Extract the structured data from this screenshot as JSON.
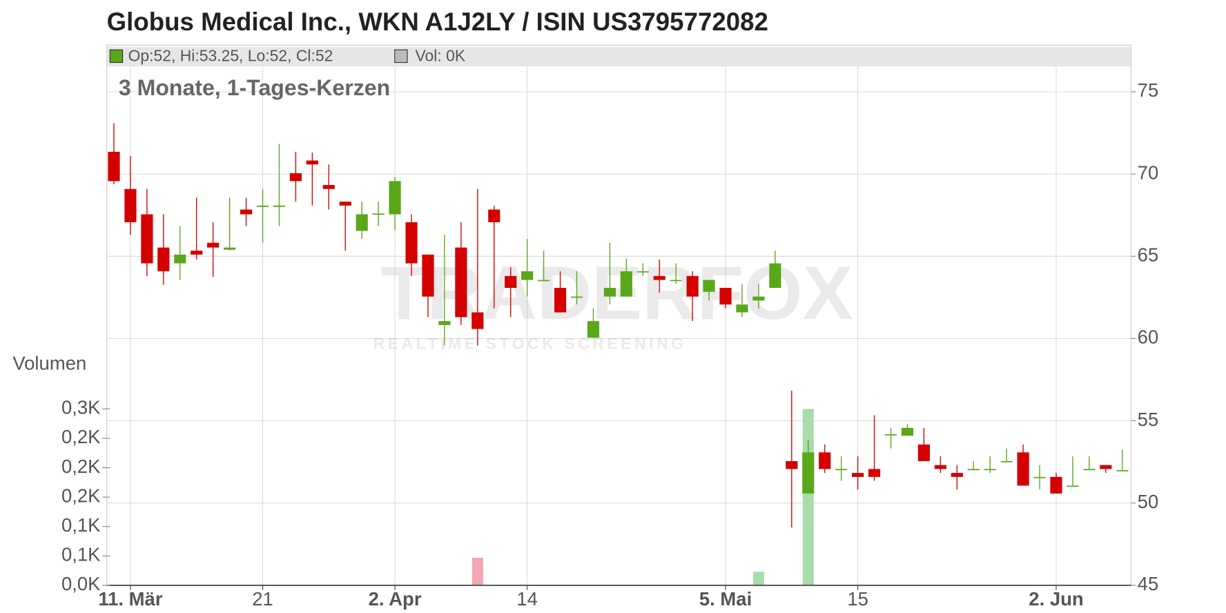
{
  "chart_data": {
    "type": "candlestick",
    "title": "Globus Medical Inc., WKN A1J2LY / ISIN US3795772082",
    "info_text": "Op:52, Hi:53.25, Lo:52, Cl:52",
    "volume_info_text": "Vol: 0K",
    "subtitle": "3 Monate, 1-Tages-Kerzen",
    "volume_label": "Volumen",
    "watermark": "TRADERFOX",
    "watermark_subtitle": "REALTIME STOCK SCREENING",
    "categories": [
      null,
      "11. Mär",
      null,
      null,
      null,
      null,
      null,
      null,
      null,
      "21",
      null,
      null,
      null,
      null,
      null,
      null,
      null,
      "2. Apr",
      null,
      null,
      null,
      null,
      null,
      null,
      null,
      "14",
      null,
      null,
      null,
      null,
      null,
      null,
      null,
      null,
      null,
      null,
      null,
      "5. Mai",
      null,
      null,
      null,
      null,
      null,
      null,
      null,
      "15",
      null,
      null,
      null,
      null,
      null,
      null,
      null,
      null,
      null,
      null,
      null,
      "2. Jun",
      null,
      null,
      null,
      null
    ],
    "open": [
      71.35,
      69.09,
      67.55,
      65.53,
      64.57,
      65.34,
      65.82,
      65.4,
      67.84,
      68.0,
      68.0,
      70.05,
      70.82,
      69.33,
      68.32,
      66.54,
      67.55,
      67.55,
      67.07,
      65.1,
      60.82,
      65.53,
      61.59,
      67.84,
      63.8,
      63.56,
      63.5,
      63.08,
      62.5,
      60.05,
      62.55,
      62.55,
      64.05,
      63.8,
      63.5,
      63.8,
      62.84,
      63.08,
      61.59,
      62.31,
      63.08,
      52.55,
      50.58,
      53.08,
      52.0,
      51.83,
      52.07,
      54.15,
      54.09,
      53.56,
      52.31,
      51.83,
      52.0,
      52.0,
      52.5,
      53.08,
      51.55,
      51.59,
      51.0,
      52.0,
      52.31,
      52
    ],
    "high": [
      73.08,
      71.1,
      69.09,
      67.55,
      66.83,
      68.56,
      67.07,
      68.56,
      68.56,
      69.09,
      71.83,
      71.35,
      71.3,
      70.58,
      68.32,
      68.32,
      68.32,
      69.81,
      67.55,
      65.1,
      66.3,
      67.07,
      69.09,
      68.08,
      64.33,
      66.06,
      65.34,
      64.09,
      64.09,
      61.83,
      65.82,
      64.86,
      64.57,
      64.81,
      64.57,
      64.09,
      63.56,
      63.08,
      63.32,
      63.32,
      65.34,
      56.83,
      53.85,
      53.56,
      52.84,
      52.84,
      55.34,
      54.57,
      54.81,
      54.57,
      52.84,
      52.31,
      52.55,
      52.84,
      53.32,
      53.56,
      52.31,
      51.83,
      52.84,
      52.84,
      52.31,
      53.25
    ],
    "low": [
      69.38,
      66.3,
      63.8,
      63.27,
      63.56,
      64.81,
      63.75,
      65.34,
      66.83,
      65.82,
      66.83,
      68.32,
      68.08,
      67.84,
      65.34,
      66.06,
      66.83,
      66.59,
      63.8,
      61.3,
      59.57,
      60.82,
      59.57,
      61.83,
      61.3,
      62.55,
      63.5,
      61.59,
      62.07,
      60.05,
      62.07,
      62.55,
      63.8,
      62.79,
      63.32,
      61.06,
      62.31,
      61.83,
      61.3,
      61.83,
      63.08,
      48.51,
      50.58,
      51.83,
      51.35,
      50.82,
      51.35,
      53.32,
      54.09,
      52.55,
      51.83,
      50.82,
      52.0,
      51.83,
      52.5,
      51.06,
      50.82,
      50.58,
      51.0,
      52.0,
      51.83,
      52
    ],
    "close": [
      69.57,
      67.07,
      64.57,
      64.09,
      65.1,
      65.1,
      65.53,
      65.53,
      67.55,
      68.08,
      68.08,
      69.57,
      70.58,
      69.09,
      68.08,
      67.55,
      67.6,
      69.57,
      64.57,
      62.55,
      61.06,
      61.3,
      60.58,
      67.07,
      63.08,
      64.09,
      63.56,
      61.59,
      62.55,
      61.06,
      63.08,
      64.09,
      64.09,
      63.56,
      63.56,
      62.55,
      63.56,
      62.07,
      62.07,
      62.55,
      64.57,
      52.07,
      53.08,
      52.07,
      52.07,
      51.59,
      51.59,
      54.18,
      54.57,
      52.55,
      52.07,
      51.59,
      52.07,
      52.07,
      52.55,
      51.06,
      51.59,
      50.58,
      51.06,
      52.07,
      52.07,
      52
    ],
    "volume": [
      0,
      0,
      0,
      0,
      0,
      0,
      0,
      0,
      0,
      0,
      0,
      0,
      0,
      0,
      0,
      0,
      0,
      0,
      0,
      0,
      0,
      0,
      0.047,
      0,
      0,
      0,
      0,
      0,
      0,
      0,
      0,
      0,
      0,
      0,
      0,
      0,
      0,
      0,
      0,
      0.023,
      0,
      0,
      0.3,
      0,
      0,
      0,
      0,
      0,
      0,
      0,
      0,
      0,
      0,
      0,
      0,
      0,
      0,
      0,
      0,
      0,
      0,
      0
    ],
    "up_color": "#5ba71c",
    "down_color": "#d40000",
    "volume_up_color": "#a8dcaa",
    "volume_down_color": "#f2a6b2",
    "ylim": [
      45,
      75
    ],
    "yticks": [
      45,
      50,
      55,
      60,
      65,
      70,
      75
    ],
    "y2lim": [
      0,
      0.3
    ],
    "y2ticks": [
      {
        "value": 0,
        "label": "0,0K"
      },
      {
        "value": 0.05,
        "label": "0,1K"
      },
      {
        "value": 0.1,
        "label": "0,1K"
      },
      {
        "value": 0.15,
        "label": "0,2K"
      },
      {
        "value": 0.2,
        "label": "0,2K"
      },
      {
        "value": 0.25,
        "label": "0,2K"
      },
      {
        "value": 0.3,
        "label": "0,3K"
      }
    ],
    "grid": true
  }
}
